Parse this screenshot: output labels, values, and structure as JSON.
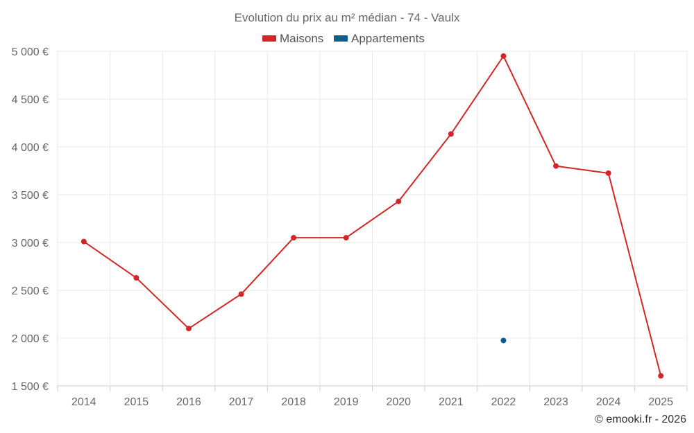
{
  "chart_data": {
    "type": "line",
    "title": "Evolution du prix au m² médian - 74 - Vaulx",
    "categories": [
      "2014",
      "2015",
      "2016",
      "2017",
      "2018",
      "2019",
      "2020",
      "2021",
      "2022",
      "2023",
      "2024",
      "2025"
    ],
    "series": [
      {
        "name": "Maisons",
        "color": "#d32626",
        "values": [
          3010,
          2630,
          2100,
          2460,
          3050,
          3050,
          3430,
          4135,
          4950,
          3800,
          3725,
          1605
        ]
      },
      {
        "name": "Appartements",
        "color": "#0d5e91",
        "values": [
          null,
          null,
          null,
          null,
          null,
          null,
          null,
          null,
          1975,
          null,
          null,
          null
        ]
      }
    ],
    "ylim": [
      1500,
      5000
    ],
    "yticks": [
      1500,
      2000,
      2500,
      3000,
      3500,
      4000,
      4500,
      5000
    ],
    "ytick_labels": [
      "1 500 €",
      "2 000 €",
      "2 500 €",
      "3 000 €",
      "3 500 €",
      "4 000 €",
      "4 500 €",
      "5 000 €"
    ],
    "legend_position": "top-center",
    "grid": true
  },
  "footer": "© emooki.fr - 2026"
}
